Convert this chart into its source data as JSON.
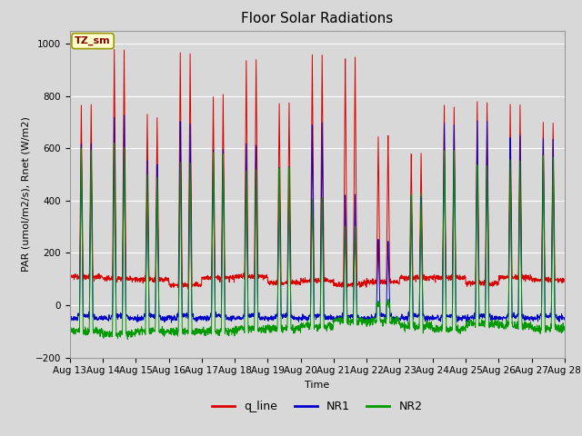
{
  "title": "Floor Solar Radiations",
  "xlabel": "Time",
  "ylabel": "PAR (umol/m2/s), Rnet (W/m2)",
  "ylim": [
    -200,
    1050
  ],
  "legend_label": "TZ_sm",
  "line_labels": [
    "q_line",
    "NR1",
    "NR2"
  ],
  "line_colors": [
    "#dd0000",
    "#0000cc",
    "#009900"
  ],
  "xtick_labels": [
    "Aug 13",
    "Aug 14",
    "Aug 15",
    "Aug 16",
    "Aug 17",
    "Aug 18",
    "Aug 19",
    "Aug 20",
    "Aug 21",
    "Aug 22",
    "Aug 23",
    "Aug 24",
    "Aug 25",
    "Aug 26",
    "Aug 27",
    "Aug 28"
  ],
  "background_color": "#d8d8d8",
  "axes_background": "#d8d8d8",
  "grid_color": "#ffffff",
  "title_fontsize": 11,
  "axis_fontsize": 8,
  "legend_box_facecolor": "#ffffcc",
  "legend_box_edgecolor": "#999900",
  "legend_box_textcolor": "#880000"
}
